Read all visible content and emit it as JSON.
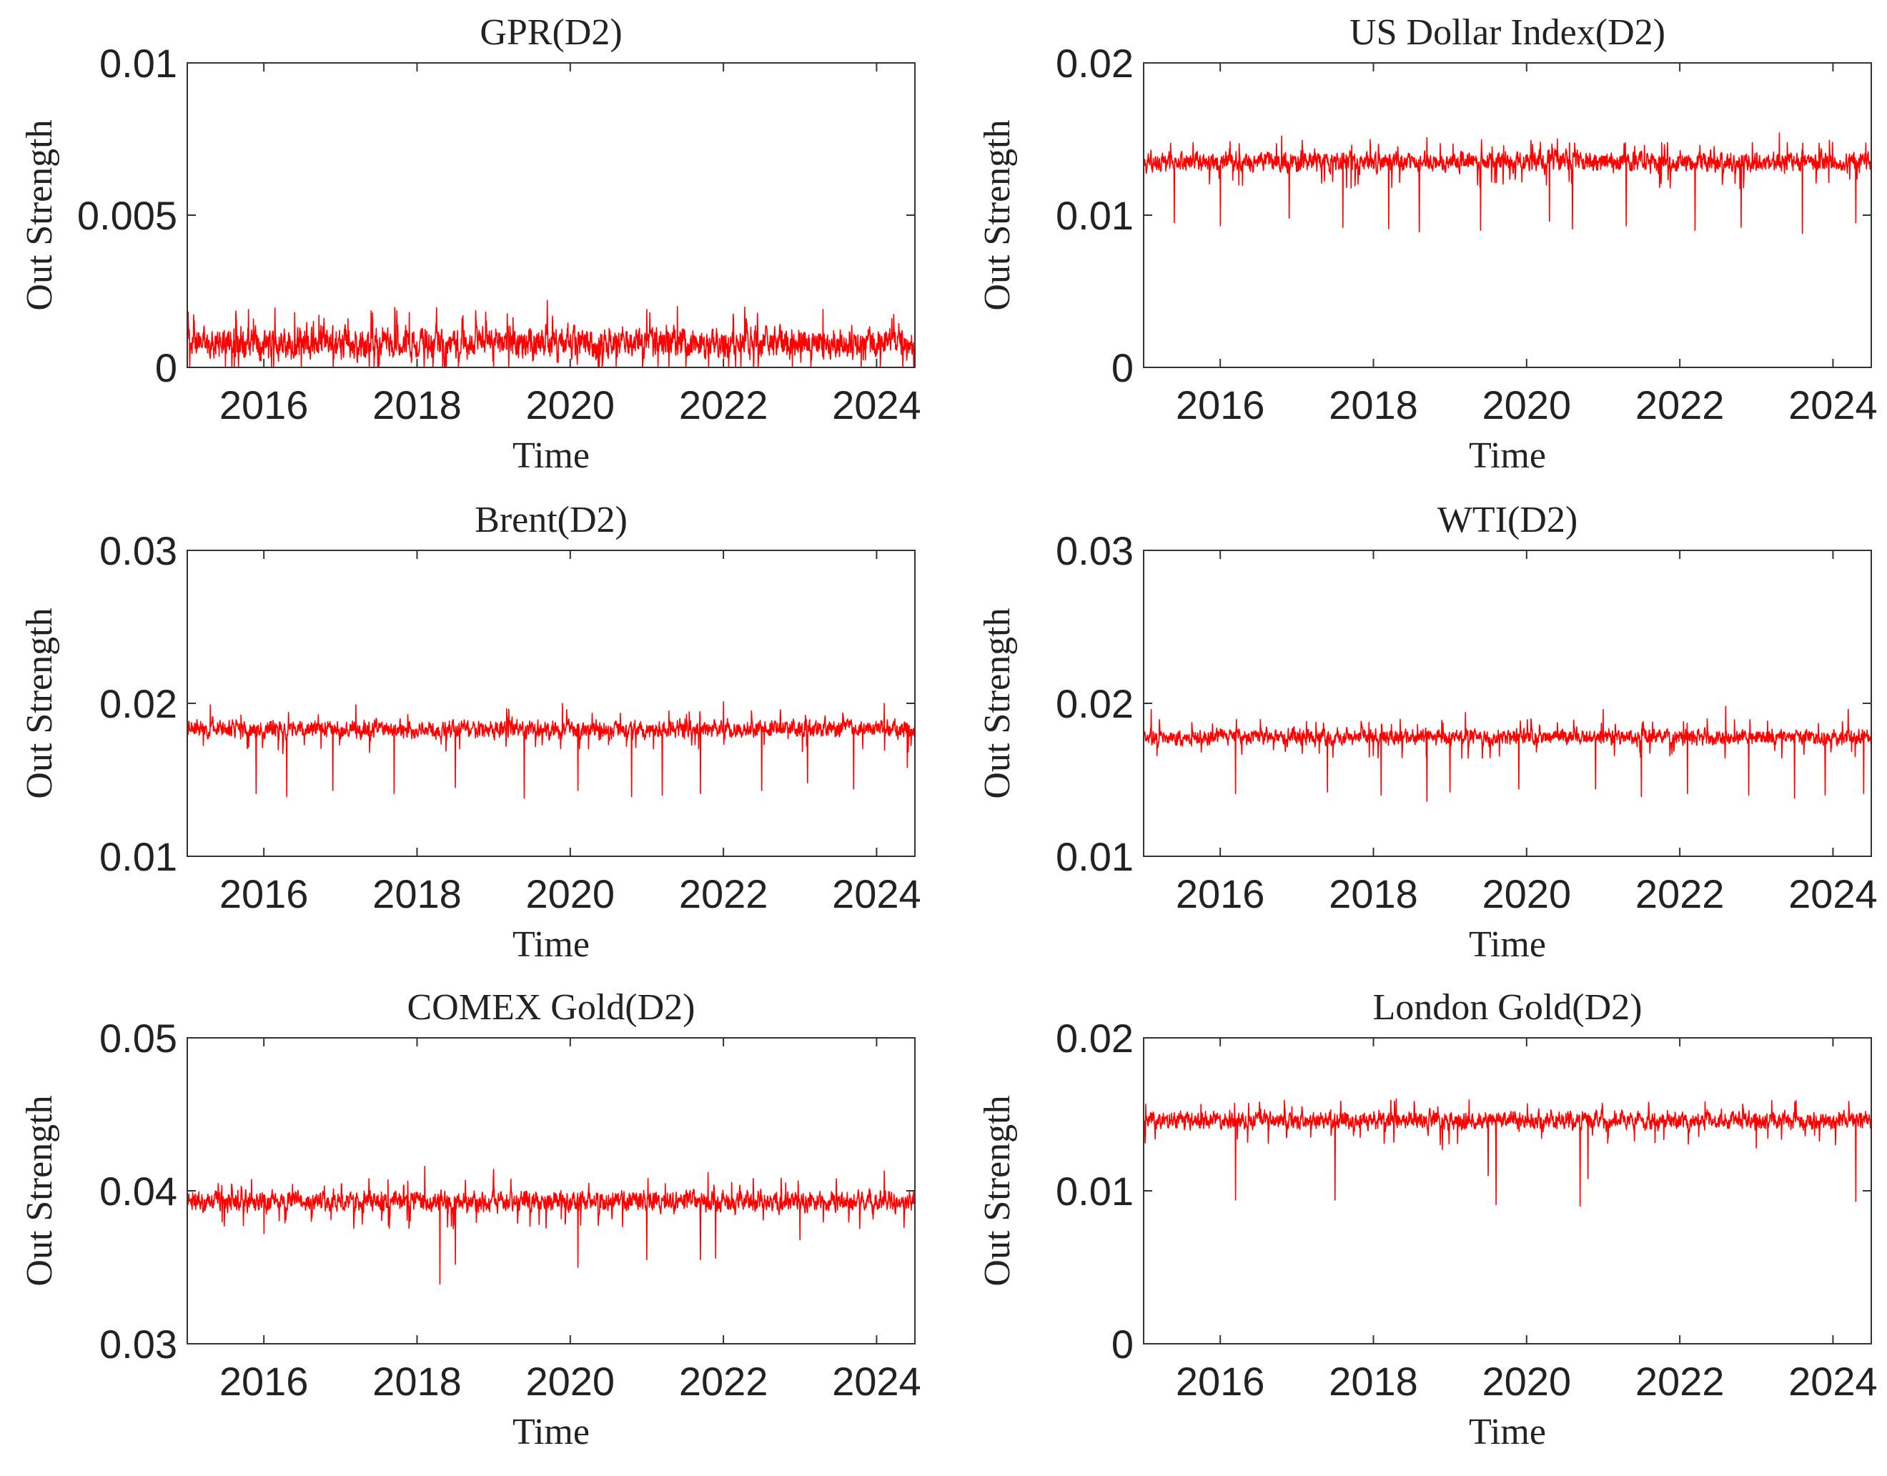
{
  "figure": {
    "series_color": "#ff0000",
    "axis_color": "#333333",
    "background": "#ffffff"
  },
  "chart_data": [
    {
      "type": "line",
      "title": "GPR(D2)",
      "xlabel": "Time",
      "ylabel": "Out Strength",
      "xlim": [
        2015.0,
        2024.5
      ],
      "ylim": [
        0,
        0.01
      ],
      "xticks": [
        2016,
        2018,
        2020,
        2022,
        2024
      ],
      "xtick_labels": [
        "2016",
        "2018",
        "2020",
        "2022",
        "2024"
      ],
      "yticks": [
        0,
        0.005,
        0.01
      ],
      "ytick_labels": [
        "0",
        "0.005",
        "0.01"
      ],
      "series": [
        {
          "name": "GPR(D2)",
          "color": "#ff0000",
          "points": 2400,
          "base": 0.0008,
          "band": 0.0007,
          "spikes_up": [
            [
              2015.8,
              0.0019
            ],
            [
              2016.4,
              0.0018
            ],
            [
              2017.1,
              0.0016
            ],
            [
              2017.9,
              0.0018
            ],
            [
              2018.6,
              0.0017
            ],
            [
              2019.7,
              0.0022
            ],
            [
              2021.0,
              0.0019
            ],
            [
              2021.4,
              0.002
            ],
            [
              2022.3,
              0.0016
            ],
            [
              2023.3,
              0.0019
            ],
            [
              2024.2,
              0.0016
            ]
          ],
          "spikes_down": [
            [
              2015.5,
              0.0
            ],
            [
              2016.1,
              0.0
            ],
            [
              2017.5,
              0.0
            ],
            [
              2019.0,
              0.0
            ],
            [
              2020.6,
              0.0
            ],
            [
              2022.9,
              0.0
            ],
            [
              2023.8,
              0.0
            ]
          ]
        }
      ]
    },
    {
      "type": "line",
      "title": "US Dollar Index(D2)",
      "xlabel": "Time",
      "ylabel": "Out Strength",
      "xlim": [
        2015.0,
        2024.5
      ],
      "ylim": [
        0,
        0.02
      ],
      "xticks": [
        2016,
        2018,
        2020,
        2022,
        2024
      ],
      "xtick_labels": [
        "2016",
        "2018",
        "2020",
        "2022",
        "2024"
      ],
      "yticks": [
        0,
        0.01,
        0.02
      ],
      "ytick_labels": [
        "0",
        "0.01",
        "0.02"
      ],
      "series": [
        {
          "name": "US Dollar Index(D2)",
          "color": "#ff0000",
          "points": 2400,
          "base": 0.0135,
          "band": 0.0009,
          "spikes_up": [
            [
              2016.8,
              0.0152
            ],
            [
              2018.7,
              0.0151
            ],
            [
              2020.4,
              0.015
            ],
            [
              2023.3,
              0.0154
            ]
          ],
          "spikes_down": [
            [
              2015.4,
              0.0095
            ],
            [
              2016.0,
              0.0093
            ],
            [
              2016.9,
              0.0098
            ],
            [
              2017.6,
              0.0092
            ],
            [
              2018.2,
              0.0091
            ],
            [
              2018.6,
              0.0089
            ],
            [
              2019.4,
              0.009
            ],
            [
              2020.3,
              0.0096
            ],
            [
              2020.6,
              0.0091
            ],
            [
              2021.3,
              0.0093
            ],
            [
              2022.2,
              0.009
            ],
            [
              2022.8,
              0.0092
            ],
            [
              2023.6,
              0.0088
            ],
            [
              2024.3,
              0.0095
            ]
          ]
        }
      ]
    },
    {
      "type": "line",
      "title": "Brent(D2)",
      "xlabel": "Time",
      "ylabel": "Out Strength",
      "xlim": [
        2015.0,
        2024.5
      ],
      "ylim": [
        0.01,
        0.03
      ],
      "xticks": [
        2016,
        2018,
        2020,
        2022,
        2024
      ],
      "xtick_labels": [
        "2016",
        "2018",
        "2020",
        "2022",
        "2024"
      ],
      "yticks": [
        0.01,
        0.02,
        0.03
      ],
      "ytick_labels": [
        "0.01",
        "0.02",
        "0.03"
      ],
      "series": [
        {
          "name": "Brent(D2)",
          "color": "#ff0000",
          "points": 2400,
          "base": 0.0183,
          "band": 0.0008,
          "spikes_up": [
            [
              2015.3,
              0.0199
            ],
            [
              2017.2,
              0.0199
            ],
            [
              2019.9,
              0.02
            ],
            [
              2022.0,
              0.0201
            ],
            [
              2024.1,
              0.02
            ]
          ],
          "spikes_down": [
            [
              2015.9,
              0.0141
            ],
            [
              2016.3,
              0.0139
            ],
            [
              2016.9,
              0.0143
            ],
            [
              2017.7,
              0.0141
            ],
            [
              2018.5,
              0.0145
            ],
            [
              2019.4,
              0.0138
            ],
            [
              2020.1,
              0.0143
            ],
            [
              2020.8,
              0.0139
            ],
            [
              2021.2,
              0.014
            ],
            [
              2021.7,
              0.0141
            ],
            [
              2022.5,
              0.0143
            ],
            [
              2023.1,
              0.0148
            ],
            [
              2023.7,
              0.0144
            ],
            [
              2024.4,
              0.0158
            ]
          ]
        }
      ]
    },
    {
      "type": "line",
      "title": "WTI(D2)",
      "xlabel": "Time",
      "ylabel": "Out Strength",
      "xlim": [
        2015.0,
        2024.5
      ],
      "ylim": [
        0.01,
        0.03
      ],
      "xticks": [
        2016,
        2018,
        2020,
        2022,
        2024
      ],
      "xtick_labels": [
        "2016",
        "2018",
        "2020",
        "2022",
        "2024"
      ],
      "yticks": [
        0.01,
        0.02,
        0.03
      ],
      "ytick_labels": [
        "0.01",
        "0.02",
        "0.03"
      ],
      "series": [
        {
          "name": "WTI(D2)",
          "color": "#ff0000",
          "points": 2400,
          "base": 0.0178,
          "band": 0.0007,
          "spikes_up": [
            [
              2015.1,
              0.0196
            ],
            [
              2019.2,
              0.0194
            ],
            [
              2021.0,
              0.0196
            ],
            [
              2022.6,
              0.0198
            ],
            [
              2024.2,
              0.0196
            ]
          ],
          "spikes_down": [
            [
              2016.2,
              0.0141
            ],
            [
              2017.4,
              0.0142
            ],
            [
              2018.1,
              0.014
            ],
            [
              2018.7,
              0.0136
            ],
            [
              2019.0,
              0.0142
            ],
            [
              2019.9,
              0.0144
            ],
            [
              2020.9,
              0.0144
            ],
            [
              2021.5,
              0.0139
            ],
            [
              2022.1,
              0.0141
            ],
            [
              2022.9,
              0.014
            ],
            [
              2023.5,
              0.0138
            ],
            [
              2023.9,
              0.014
            ],
            [
              2024.4,
              0.0141
            ]
          ]
        }
      ]
    },
    {
      "type": "line",
      "title": "COMEX Gold(D2)",
      "xlabel": "Time",
      "ylabel": "Out Strength",
      "xlim": [
        2015.0,
        2024.5
      ],
      "ylim": [
        0.03,
        0.05
      ],
      "xticks": [
        2016,
        2018,
        2020,
        2022,
        2024
      ],
      "xtick_labels": [
        "2016",
        "2018",
        "2020",
        "2022",
        "2024"
      ],
      "yticks": [
        0.03,
        0.04,
        0.05
      ],
      "ytick_labels": [
        "0.03",
        "0.04",
        "0.05"
      ],
      "series": [
        {
          "name": "COMEX Gold(D2)",
          "color": "#ff0000",
          "points": 2400,
          "base": 0.0393,
          "band": 0.0009,
          "spikes_up": [
            [
              2018.1,
              0.0416
            ],
            [
              2019.0,
              0.0414
            ],
            [
              2021.8,
              0.0412
            ],
            [
              2024.1,
              0.0413
            ]
          ],
          "spikes_down": [
            [
              2016.0,
              0.0372
            ],
            [
              2018.3,
              0.0339
            ],
            [
              2018.5,
              0.0352
            ],
            [
              2020.1,
              0.035
            ],
            [
              2021.0,
              0.0355
            ],
            [
              2021.7,
              0.0355
            ],
            [
              2021.9,
              0.0356
            ],
            [
              2023.0,
              0.0368
            ]
          ]
        }
      ]
    },
    {
      "type": "line",
      "title": "London Gold(D2)",
      "xlabel": "Time",
      "ylabel": "Out Strength",
      "xlim": [
        2015.0,
        2024.5
      ],
      "ylim": [
        0,
        0.02
      ],
      "xticks": [
        2016,
        2018,
        2020,
        2022,
        2024
      ],
      "xtick_labels": [
        "2016",
        "2018",
        "2020",
        "2022",
        "2024"
      ],
      "yticks": [
        0,
        0.01,
        0.02
      ],
      "ytick_labels": [
        "0",
        "0.01",
        "0.02"
      ],
      "series": [
        {
          "name": "London Gold(D2)",
          "color": "#ff0000",
          "points": 2400,
          "base": 0.0146,
          "band": 0.0008,
          "spikes_up": [
            [
              2015.0,
              0.0156
            ],
            [
              2018.3,
              0.016
            ],
            [
              2023.2,
              0.0159
            ]
          ],
          "spikes_down": [
            [
              2016.2,
              0.0094
            ],
            [
              2017.5,
              0.0094
            ],
            [
              2018.9,
              0.0127
            ],
            [
              2019.5,
              0.011
            ],
            [
              2019.6,
              0.0091
            ],
            [
              2020.7,
              0.009
            ],
            [
              2020.8,
              0.0108
            ],
            [
              2023.0,
              0.0128
            ],
            [
              2024.3,
              0.0093
            ]
          ]
        }
      ]
    }
  ]
}
